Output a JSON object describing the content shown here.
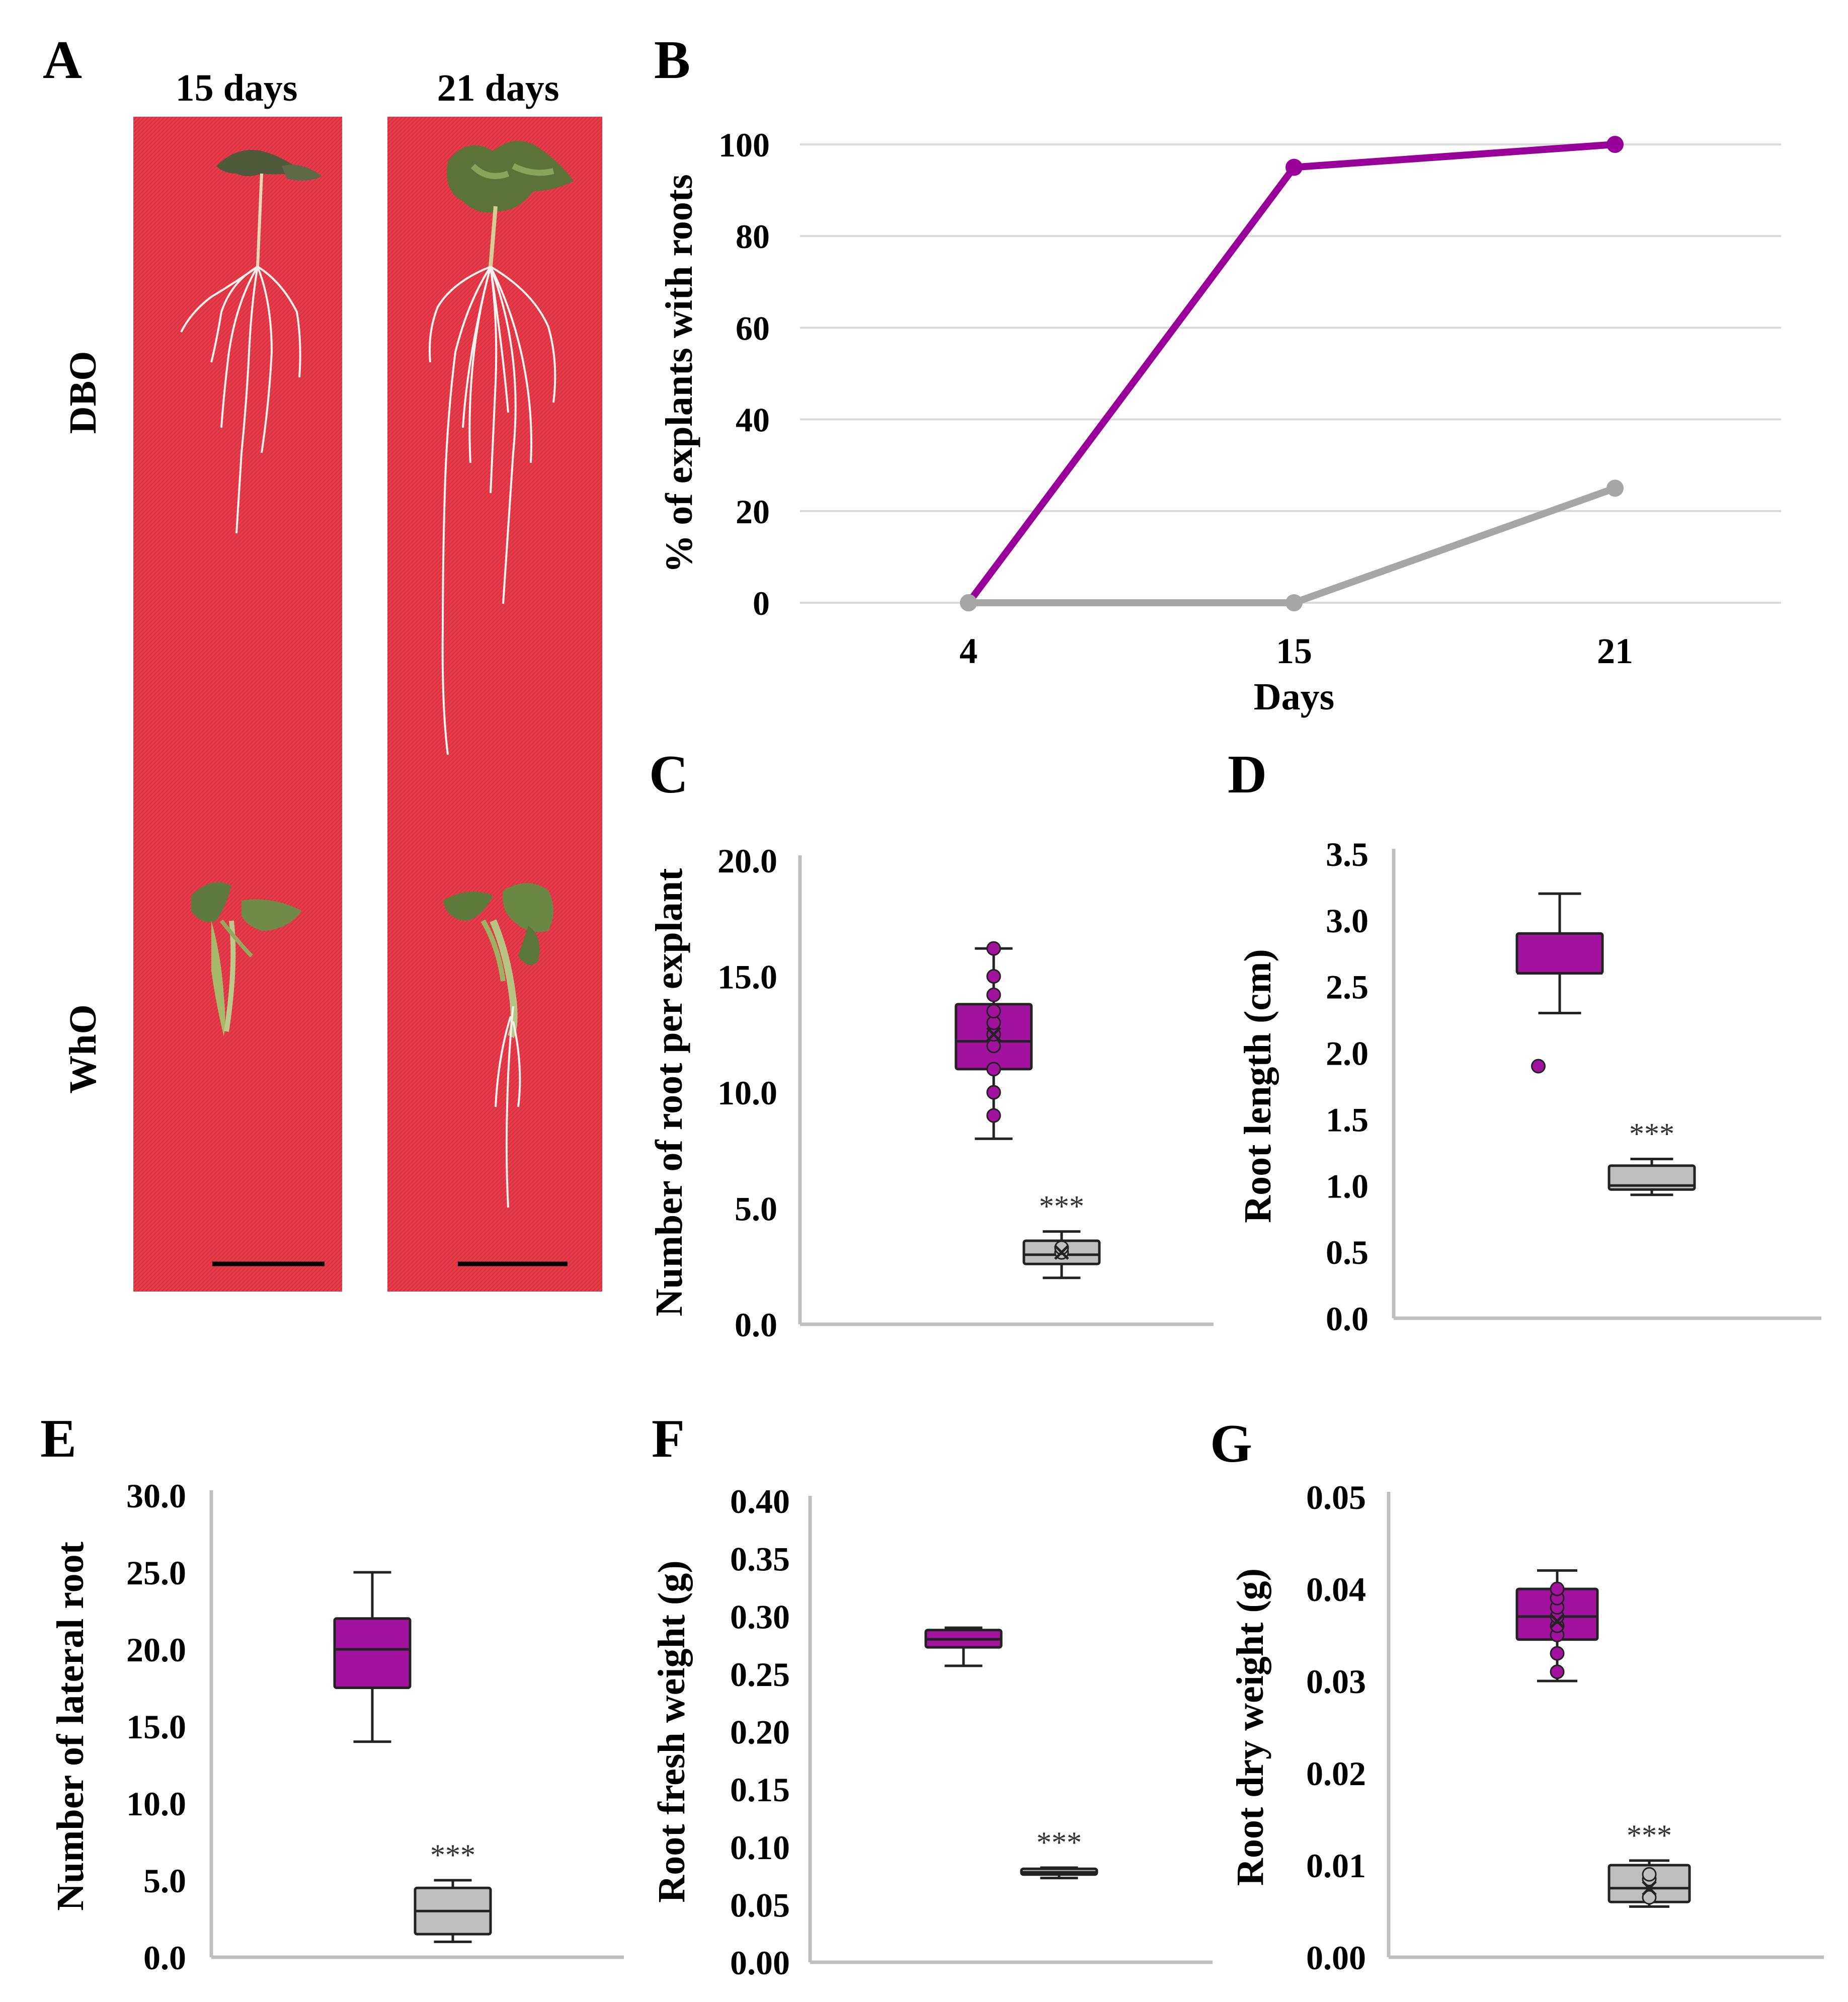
{
  "colors": {
    "dbo": "#990099",
    "dbo_box": "#a2129f",
    "who": "#a6a6a6",
    "who_box": "#bfbfbf",
    "grid": "#d9d9d9",
    "axis": "#bfbfbf",
    "photo_bg": "#e63c4a",
    "text": "#000000"
  },
  "panel_a": {
    "letter": "A",
    "col_labels": [
      "15 days",
      "21 days"
    ],
    "row_labels": [
      "DBO",
      "WhO"
    ]
  },
  "panel_b": {
    "letter": "B"
  },
  "panel_c": {
    "letter": "C"
  },
  "panel_d": {
    "letter": "D"
  },
  "panel_e": {
    "letter": "E"
  },
  "panel_f": {
    "letter": "F"
  },
  "panel_g": {
    "letter": "G"
  },
  "chart_data": [
    {
      "id": "B",
      "type": "line",
      "x": [
        4,
        15,
        21
      ],
      "categories": [
        "4",
        "15",
        "21"
      ],
      "series": [
        {
          "color": "#990099",
          "values": [
            0,
            95,
            100
          ]
        },
        {
          "color": "#a6a6a6",
          "values": [
            0,
            0,
            25
          ]
        }
      ],
      "xlabel": "Days",
      "ylabel": "% of explants with roots",
      "ylim": [
        0,
        100
      ],
      "yticks": [
        "0",
        "20",
        "40",
        "60",
        "80",
        "100"
      ],
      "grid": true
    },
    {
      "id": "C",
      "type": "box",
      "ylabel": "Number of root per explant",
      "ylim": [
        0,
        20
      ],
      "yticks": [
        "0.0",
        "5.0",
        "10.0",
        "15.0",
        "20.0"
      ],
      "boxes": [
        {
          "color": "#a2129f",
          "min": 8.0,
          "q1": 11.0,
          "median": 12.2,
          "q3": 13.8,
          "max": 16.2,
          "mean": 12.5,
          "points": [
            9.0,
            10.0,
            11.0,
            12.0,
            12.5,
            13.0,
            13.5,
            14.2,
            15.0,
            16.2
          ]
        },
        {
          "color": "#bfbfbf",
          "min": 2.0,
          "q1": 2.6,
          "median": 3.0,
          "q3": 3.6,
          "max": 4.0,
          "mean": 3.1,
          "points": [
            3.1,
            3.3
          ],
          "label": "***"
        }
      ]
    },
    {
      "id": "D",
      "type": "box",
      "ylabel": "Root length (cm)",
      "ylim": [
        0,
        3.5
      ],
      "yticks": [
        "0.0",
        "0.5",
        "1.0",
        "1.5",
        "2.0",
        "2.5",
        "3.0",
        "3.5"
      ],
      "boxes": [
        {
          "color": "#a2129f",
          "min": 2.3,
          "q1": 2.6,
          "median": 2.6,
          "q3": 2.9,
          "max": 3.2,
          "outliers": [
            1.9
          ]
        },
        {
          "color": "#bfbfbf",
          "min": 0.93,
          "q1": 0.97,
          "median": 1.0,
          "q3": 1.15,
          "max": 1.2,
          "label": "***"
        }
      ]
    },
    {
      "id": "E",
      "type": "box",
      "ylabel": "Number of lateral root",
      "ylim": [
        0,
        30
      ],
      "yticks": [
        "0.0",
        "5.0",
        "10.0",
        "15.0",
        "20.0",
        "25.0",
        "30.0"
      ],
      "boxes": [
        {
          "color": "#a2129f",
          "min": 14.0,
          "q1": 17.5,
          "median": 20.0,
          "q3": 22.0,
          "max": 25.0
        },
        {
          "color": "#bfbfbf",
          "min": 1.0,
          "q1": 1.5,
          "median": 3.0,
          "q3": 4.5,
          "max": 5.0,
          "label": "***"
        }
      ]
    },
    {
      "id": "F",
      "type": "box",
      "ylabel": "Root fresh weight (g)",
      "ylim": [
        0,
        0.4
      ],
      "yticks": [
        "0.00",
        "0.05",
        "0.10",
        "0.15",
        "0.20",
        "0.25",
        "0.30",
        "0.35",
        "0.40"
      ],
      "boxes": [
        {
          "color": "#a2129f",
          "min": 0.257,
          "q1": 0.273,
          "median": 0.28,
          "q3": 0.288,
          "max": 0.29
        },
        {
          "color": "#bfbfbf",
          "min": 0.073,
          "q1": 0.076,
          "median": 0.078,
          "q3": 0.081,
          "max": 0.082,
          "label": "***"
        }
      ]
    },
    {
      "id": "G",
      "type": "box",
      "ylabel": "Root dry weight (g)",
      "ylim": [
        0,
        0.05
      ],
      "yticks": [
        "0.00",
        "0.01",
        "0.02",
        "0.03",
        "0.04",
        "0.05"
      ],
      "boxes": [
        {
          "color": "#a2129f",
          "min": 0.03,
          "q1": 0.0345,
          "median": 0.037,
          "q3": 0.04,
          "max": 0.042,
          "mean": 0.0365,
          "points": [
            0.031,
            0.033,
            0.035,
            0.036,
            0.037,
            0.038,
            0.039,
            0.04
          ]
        },
        {
          "color": "#bfbfbf",
          "min": 0.0055,
          "q1": 0.006,
          "median": 0.0075,
          "q3": 0.01,
          "max": 0.0105,
          "mean": 0.0075,
          "points": [
            0.0065,
            0.0085,
            0.009
          ],
          "label": "***"
        }
      ]
    }
  ]
}
